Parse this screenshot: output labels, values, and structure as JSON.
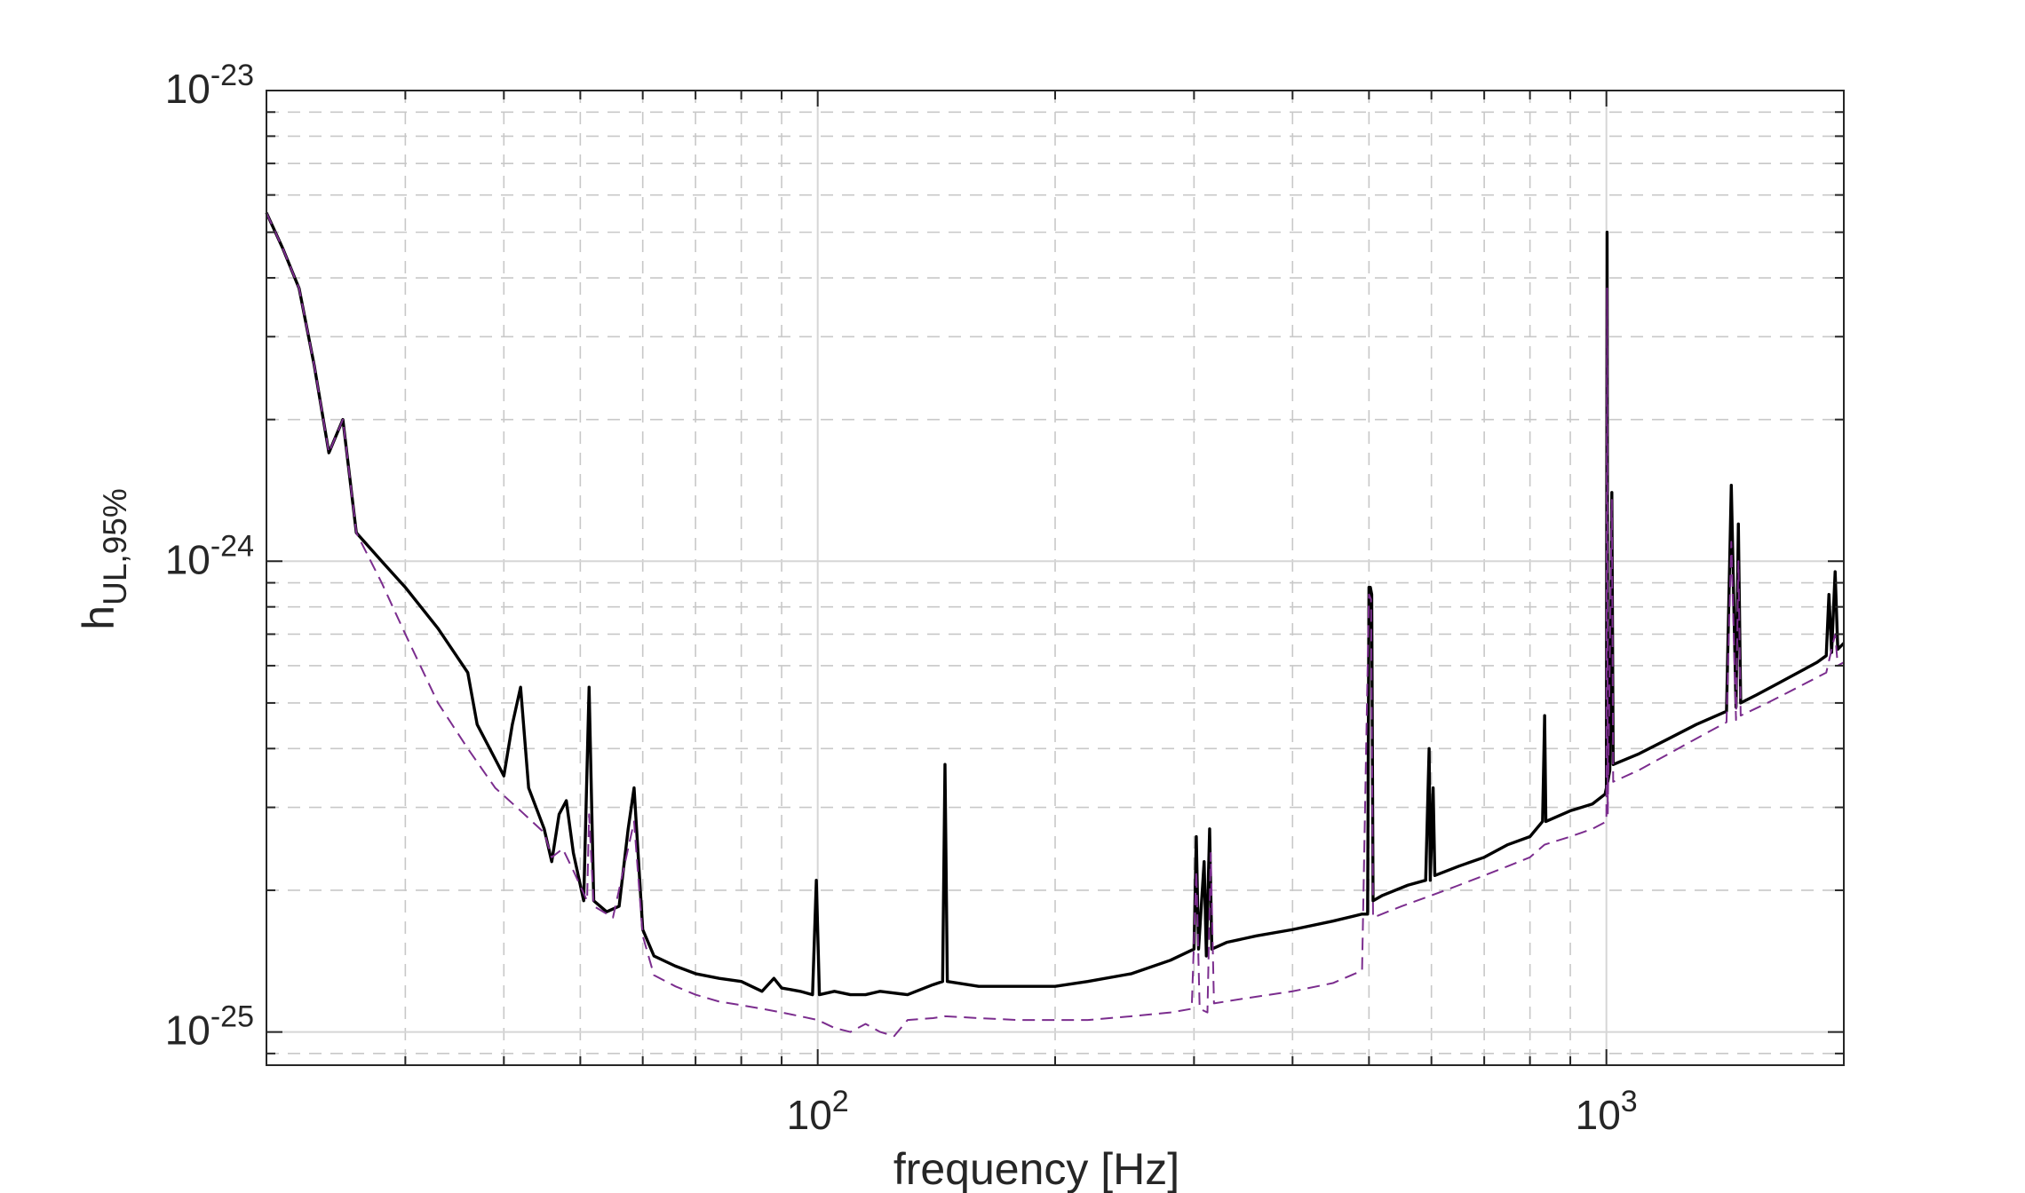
{
  "chart_data": {
    "type": "line",
    "title": "",
    "xlabel": "frequency [Hz]",
    "ylabel": {
      "base": "h",
      "subscript": "UL,95%"
    },
    "x_scale": "log",
    "y_scale": "log",
    "xlim": [
      20,
      2000
    ],
    "ylim": [
      8.5e-26,
      1e-23
    ],
    "grid": true,
    "legend": "none",
    "x_tick_labels": [
      {
        "value": 100,
        "base": "10",
        "exp": "2"
      },
      {
        "value": 1000,
        "base": "10",
        "exp": "3"
      }
    ],
    "y_tick_labels": [
      {
        "value": 1e-23,
        "base": "10",
        "exp": "-23"
      },
      {
        "value": 1e-24,
        "base": "10",
        "exp": "-24"
      },
      {
        "value": 1e-25,
        "base": "10",
        "exp": "-25"
      }
    ],
    "series": [
      {
        "style": "solid",
        "color": "#000000",
        "points": [
          [
            20,
            5.5e-24
          ],
          [
            21,
            4.6e-24
          ],
          [
            22,
            3.8e-24
          ],
          [
            23,
            2.6e-24
          ],
          [
            24,
            1.7e-24
          ],
          [
            25,
            2e-24
          ],
          [
            26,
            1.15e-24
          ],
          [
            28,
            1e-24
          ],
          [
            30,
            8.8e-25
          ],
          [
            33,
            7.2e-25
          ],
          [
            36,
            5.8e-25
          ],
          [
            37,
            4.5e-25
          ],
          [
            39,
            3.8e-25
          ],
          [
            40,
            3.5e-25
          ],
          [
            41,
            4.5e-25
          ],
          [
            42,
            5.4e-25
          ],
          [
            43,
            3.3e-25
          ],
          [
            45,
            2.7e-25
          ],
          [
            46,
            2.3e-25
          ],
          [
            47,
            2.9e-25
          ],
          [
            48,
            3.1e-25
          ],
          [
            49,
            2.4e-25
          ],
          [
            50.5,
            1.9e-25
          ],
          [
            51.3,
            5.4e-25
          ],
          [
            52,
            1.9e-25
          ],
          [
            54,
            1.8e-25
          ],
          [
            56,
            1.85e-25
          ],
          [
            57.5,
            2.7e-25
          ],
          [
            58.5,
            3.3e-25
          ],
          [
            60,
            1.65e-25
          ],
          [
            62,
            1.45e-25
          ],
          [
            66,
            1.38e-25
          ],
          [
            70,
            1.33e-25
          ],
          [
            75,
            1.3e-25
          ],
          [
            80,
            1.28e-25
          ],
          [
            85,
            1.22e-25
          ],
          [
            88,
            1.3e-25
          ],
          [
            90,
            1.24e-25
          ],
          [
            95,
            1.22e-25
          ],
          [
            98.5,
            1.2e-25
          ],
          [
            99.6,
            2.1e-25
          ],
          [
            100.5,
            1.2e-25
          ],
          [
            105,
            1.22e-25
          ],
          [
            110,
            1.2e-25
          ],
          [
            115,
            1.2e-25
          ],
          [
            120,
            1.22e-25
          ],
          [
            130,
            1.2e-25
          ],
          [
            140,
            1.26e-25
          ],
          [
            144,
            1.28e-25
          ],
          [
            145,
            3.7e-25
          ],
          [
            146,
            1.28e-25
          ],
          [
            160,
            1.25e-25
          ],
          [
            180,
            1.25e-25
          ],
          [
            200,
            1.25e-25
          ],
          [
            220,
            1.28e-25
          ],
          [
            250,
            1.33e-25
          ],
          [
            280,
            1.42e-25
          ],
          [
            300,
            1.5e-25
          ],
          [
            302,
            2.6e-25
          ],
          [
            304,
            1.5e-25
          ],
          [
            309,
            2.3e-25
          ],
          [
            311,
            1.45e-25
          ],
          [
            314,
            2.7e-25
          ],
          [
            316,
            1.5e-25
          ],
          [
            330,
            1.55e-25
          ],
          [
            360,
            1.6e-25
          ],
          [
            400,
            1.65e-25
          ],
          [
            450,
            1.72e-25
          ],
          [
            490,
            1.78e-25
          ],
          [
            498,
            1.78e-25
          ],
          [
            500,
            8.8e-25
          ],
          [
            502,
            8.8e-25
          ],
          [
            504,
            8.5e-25
          ],
          [
            506,
            1.9e-25
          ],
          [
            520,
            1.95e-25
          ],
          [
            560,
            2.05e-25
          ],
          [
            590,
            2.1e-25
          ],
          [
            596,
            4e-25
          ],
          [
            598,
            2.1e-25
          ],
          [
            603,
            3.3e-25
          ],
          [
            606,
            2.15e-25
          ],
          [
            650,
            2.25e-25
          ],
          [
            700,
            2.35e-25
          ],
          [
            750,
            2.5e-25
          ],
          [
            800,
            2.6e-25
          ],
          [
            830,
            2.8e-25
          ],
          [
            835,
            4.7e-25
          ],
          [
            838,
            2.8e-25
          ],
          [
            900,
            2.95e-25
          ],
          [
            960,
            3.05e-25
          ],
          [
            996,
            3.2e-25
          ],
          [
            1000,
            3.3e-25
          ],
          [
            1002,
            5e-24
          ],
          [
            1004,
            3.4e-25
          ],
          [
            1010,
            3.6e-25
          ],
          [
            1016,
            1.4e-24
          ],
          [
            1020,
            3.7e-25
          ],
          [
            1100,
            3.9e-25
          ],
          [
            1200,
            4.2e-25
          ],
          [
            1300,
            4.5e-25
          ],
          [
            1420,
            4.8e-25
          ],
          [
            1440,
            1.45e-24
          ],
          [
            1460,
            4.9e-25
          ],
          [
            1470,
            1.2e-24
          ],
          [
            1480,
            5e-25
          ],
          [
            1550,
            5.2e-25
          ],
          [
            1650,
            5.5e-25
          ],
          [
            1750,
            5.8e-25
          ],
          [
            1850,
            6.1e-25
          ],
          [
            1900,
            6.3e-25
          ],
          [
            1915,
            8.5e-25
          ],
          [
            1930,
            6.4e-25
          ],
          [
            1950,
            9.5e-25
          ],
          [
            1965,
            6.5e-25
          ],
          [
            2000,
            6.7e-25
          ]
        ]
      },
      {
        "style": "dashed",
        "color": "#7b2d8e",
        "points": [
          [
            20,
            5.5e-24
          ],
          [
            21,
            4.6e-24
          ],
          [
            22,
            3.8e-24
          ],
          [
            23,
            2.6e-24
          ],
          [
            24,
            1.7e-24
          ],
          [
            25,
            2e-24
          ],
          [
            26,
            1.15e-24
          ],
          [
            28,
            9e-25
          ],
          [
            30,
            7e-25
          ],
          [
            33,
            5e-25
          ],
          [
            36,
            4e-25
          ],
          [
            39,
            3.3e-25
          ],
          [
            42,
            2.95e-25
          ],
          [
            45,
            2.65e-25
          ],
          [
            46,
            2.35e-25
          ],
          [
            47.5,
            2.45e-25
          ],
          [
            49,
            2.2e-25
          ],
          [
            51,
            1.9e-25
          ],
          [
            51.3,
            2.9e-25
          ],
          [
            52,
            1.85e-25
          ],
          [
            55,
            1.75e-25
          ],
          [
            58.5,
            2.8e-25
          ],
          [
            60,
            1.6e-25
          ],
          [
            62,
            1.32e-25
          ],
          [
            66,
            1.25e-25
          ],
          [
            70,
            1.2e-25
          ],
          [
            75,
            1.16e-25
          ],
          [
            80,
            1.14e-25
          ],
          [
            85,
            1.12e-25
          ],
          [
            90,
            1.1e-25
          ],
          [
            95,
            1.08e-25
          ],
          [
            100,
            1.06e-25
          ],
          [
            105,
            1.02e-25
          ],
          [
            110,
            1e-25
          ],
          [
            115,
            1.04e-25
          ],
          [
            120,
            1e-25
          ],
          [
            125,
            9.8e-26
          ],
          [
            130,
            1.06e-25
          ],
          [
            140,
            1.07e-25
          ],
          [
            145,
            1.08e-25
          ],
          [
            160,
            1.07e-25
          ],
          [
            180,
            1.06e-25
          ],
          [
            200,
            1.06e-25
          ],
          [
            220,
            1.06e-25
          ],
          [
            250,
            1.08e-25
          ],
          [
            280,
            1.1e-25
          ],
          [
            298,
            1.12e-25
          ],
          [
            302,
            2.2e-25
          ],
          [
            305,
            1.12e-25
          ],
          [
            312,
            1.1e-25
          ],
          [
            315,
            2.4e-25
          ],
          [
            318,
            1.15e-25
          ],
          [
            350,
            1.18e-25
          ],
          [
            400,
            1.22e-25
          ],
          [
            450,
            1.27e-25
          ],
          [
            490,
            1.35e-25
          ],
          [
            500,
            8.5e-25
          ],
          [
            503,
            8.3e-25
          ],
          [
            506,
            1.75e-25
          ],
          [
            550,
            1.85e-25
          ],
          [
            600,
            1.95e-25
          ],
          [
            650,
            2.05e-25
          ],
          [
            700,
            2.15e-25
          ],
          [
            750,
            2.25e-25
          ],
          [
            800,
            2.35e-25
          ],
          [
            835,
            2.5e-25
          ],
          [
            900,
            2.6e-25
          ],
          [
            960,
            2.7e-25
          ],
          [
            1000,
            2.8e-25
          ],
          [
            1002,
            3.8e-24
          ],
          [
            1004,
            2.9e-25
          ],
          [
            1016,
            1.35e-24
          ],
          [
            1020,
            3.4e-25
          ],
          [
            1100,
            3.6e-25
          ],
          [
            1200,
            3.9e-25
          ],
          [
            1300,
            4.2e-25
          ],
          [
            1420,
            4.55e-25
          ],
          [
            1440,
            1.1e-24
          ],
          [
            1460,
            4.6e-25
          ],
          [
            1470,
            1e-24
          ],
          [
            1480,
            4.7e-25
          ],
          [
            1600,
            5e-25
          ],
          [
            1750,
            5.4e-25
          ],
          [
            1900,
            5.8e-25
          ],
          [
            1950,
            7e-25
          ],
          [
            1965,
            6e-25
          ],
          [
            2000,
            6.1e-25
          ]
        ]
      }
    ]
  }
}
